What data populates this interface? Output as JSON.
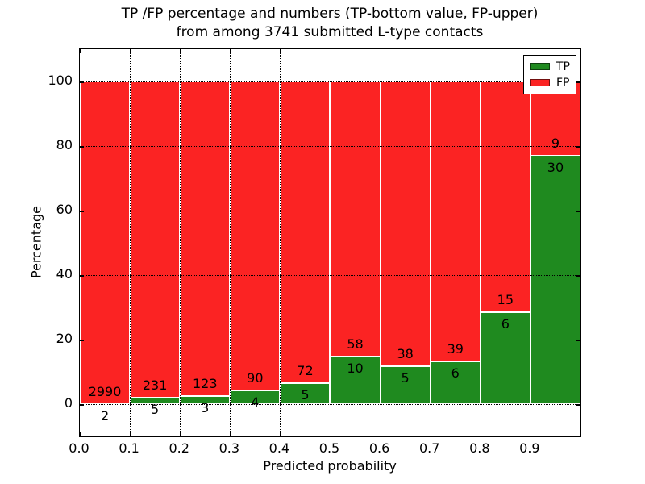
{
  "title": {
    "line1": "TP /FP percentage and numbers (TP-bottom value, FP-upper)",
    "line2": "from among 3741 submitted L-type contacts"
  },
  "axes": {
    "xlabel": "Predicted probability",
    "ylabel": "Percentage"
  },
  "legend": {
    "items": [
      {
        "label": "TP",
        "color": "#1f8a1f"
      },
      {
        "label": "FP",
        "color": "#fb2323"
      }
    ]
  },
  "chart_data": {
    "type": "bar",
    "stacked": true,
    "normalized_to_percent": true,
    "title": "TP /FP percentage and numbers (TP-bottom value, FP-upper) from among 3741 submitted L-type contacts",
    "xlabel": "Predicted probability",
    "ylabel": "Percentage",
    "xlim": [
      0.0,
      1.0
    ],
    "ylim": [
      -10,
      110
    ],
    "grid": "dotted-black-both-axes",
    "legend_position": "upper right",
    "total_contacts": 3741,
    "bin_width": 0.1,
    "bin_starts": [
      0.0,
      0.1,
      0.2,
      0.3,
      0.4,
      0.5,
      0.6,
      0.7,
      0.8,
      0.9
    ],
    "xticks": [
      0.0,
      0.1,
      0.2,
      0.3,
      0.4,
      0.5,
      0.6,
      0.7,
      0.8,
      0.9
    ],
    "xtick_labels": [
      "0.0",
      "0.1",
      "0.2",
      "0.3",
      "0.4",
      "0.5",
      "0.6",
      "0.7",
      "0.8",
      "0.9"
    ],
    "yticks": [
      0,
      20,
      40,
      60,
      80,
      100
    ],
    "ytick_labels": [
      "0",
      "20",
      "40",
      "60",
      "80",
      "100"
    ],
    "series": [
      {
        "name": "TP",
        "color": "#1f8a1f",
        "counts": [
          2,
          5,
          3,
          4,
          5,
          10,
          5,
          6,
          6,
          30
        ]
      },
      {
        "name": "FP",
        "color": "#fb2323",
        "counts": [
          2990,
          231,
          123,
          90,
          72,
          58,
          38,
          39,
          15,
          9
        ]
      }
    ],
    "tp_percentages": [
      0.07,
      2.12,
      2.38,
      4.26,
      6.49,
      14.71,
      11.63,
      13.33,
      28.57,
      76.92
    ],
    "annotation_note": "FP count printed above TP/FP boundary, TP count printed below it"
  }
}
